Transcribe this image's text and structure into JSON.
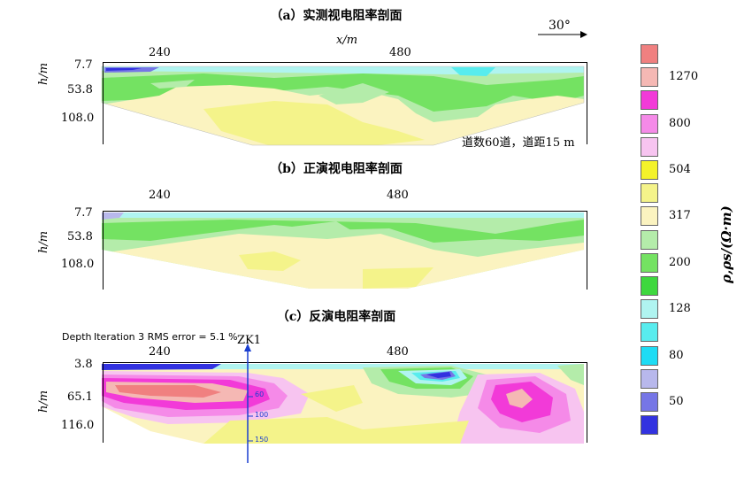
{
  "north_arrow": {
    "label": "30°"
  },
  "panels": [
    {
      "title": "（a）实测视电阻率剖面",
      "xlabel": "x/m",
      "ylabel": "h/m",
      "x_ticks": [
        "240",
        "480"
      ],
      "y_ticks": [
        "7.7",
        "53.8",
        "108.0"
      ],
      "note": "道数60道，道距15 m"
    },
    {
      "title": "（b）正演视电阻率剖面",
      "x_ticks": [
        "240",
        "480"
      ],
      "ylabel": "h/m",
      "y_ticks": [
        "7.7",
        "53.8",
        "108.0"
      ]
    },
    {
      "title": "（c）反演电阻率剖面",
      "header_left": "Depth",
      "header_text": "Iteration 3 RMS error = 5.1 %",
      "x_ticks": [
        "240",
        "480"
      ],
      "ylabel": "h/m",
      "y_ticks": [
        "3.8",
        "65.1",
        "116.0"
      ],
      "borehole": {
        "name": "ZK1",
        "depth_ticks": [
          "60",
          "100",
          "150"
        ]
      }
    }
  ],
  "colorbar": {
    "title": "ρ,ρs/(Ω·m)",
    "colors": [
      "#f08080",
      "#f5b8b4",
      "#f23ad8",
      "#f58ae8",
      "#f7c4f0",
      "#f4f22a",
      "#f4f38a",
      "#fbf3c0",
      "#b4ecaa",
      "#74e262",
      "#3ed83e",
      "#b0f4f0",
      "#58ecee",
      "#1edcf4",
      "#b8b8ec",
      "#7676e6",
      "#3232e0"
    ],
    "labels": [
      "1270",
      "800",
      "504",
      "317",
      "200",
      "128",
      "80",
      "50"
    ]
  },
  "chart_data": [
    {
      "type": "heatmap",
      "title": "（a）实测视电阻率剖面",
      "xlabel": "x/m",
      "ylabel": "h/m",
      "x_ticks": [
        240,
        480
      ],
      "y_ticks": [
        7.7,
        53.8,
        108.0
      ],
      "value_unit": "Ω·m",
      "color_scale": [
        50,
        80,
        128,
        200,
        317,
        504,
        800,
        1270
      ]
    },
    {
      "type": "heatmap",
      "title": "（b）正演视电阻率剖面",
      "ylabel": "h/m",
      "x_ticks": [
        240,
        480
      ],
      "y_ticks": [
        7.7,
        53.8,
        108.0
      ],
      "value_unit": "Ω·m",
      "color_scale": [
        50,
        80,
        128,
        200,
        317,
        504,
        800,
        1270
      ]
    },
    {
      "type": "heatmap",
      "title": "（c）反演电阻率剖面",
      "ylabel": "h/m",
      "x_ticks": [
        240,
        480
      ],
      "y_ticks": [
        3.8,
        65.1,
        116.0
      ],
      "rms_error_percent": 5.1,
      "iteration": 3,
      "borehole": "ZK1",
      "value_unit": "Ω·m",
      "color_scale": [
        50,
        80,
        128,
        200,
        317,
        504,
        800,
        1270
      ]
    }
  ]
}
